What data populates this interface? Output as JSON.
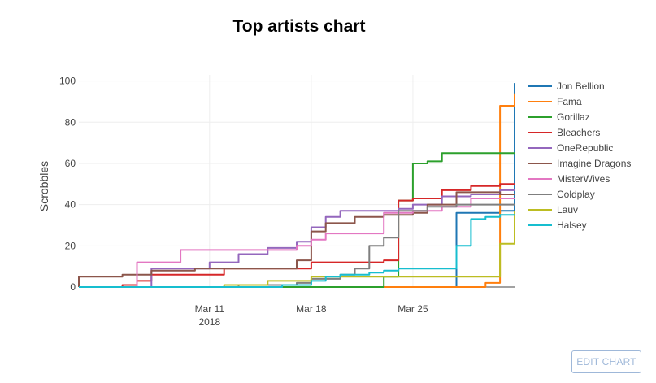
{
  "edit_button_label": "EDIT CHART",
  "chart_data": {
    "type": "line",
    "title": "Top artists chart",
    "xlabel": "",
    "ylabel": "Scrobbles",
    "x_type": "date",
    "xlim": [
      "2018-03-02",
      "2018-04-01"
    ],
    "ylim": [
      0,
      103
    ],
    "yticks": [
      0,
      20,
      40,
      60,
      80,
      100
    ],
    "xticks": [
      {
        "date": "2018-03-11",
        "label": "Mar 11",
        "sublabel": "2018"
      },
      {
        "date": "2018-03-18",
        "label": "Mar 18",
        "sublabel": ""
      },
      {
        "date": "2018-03-25",
        "label": "Mar 25",
        "sublabel": ""
      }
    ],
    "grid": true,
    "legend_position": "right",
    "series": [
      {
        "name": "Jon Bellion",
        "color": "#1f77b4",
        "step": true,
        "points": [
          [
            "2018-03-02",
            0
          ],
          [
            "2018-03-26",
            0
          ],
          [
            "2018-03-28",
            1
          ],
          [
            "2018-03-28",
            36
          ],
          [
            "2018-03-31",
            37
          ],
          [
            "2018-04-01",
            57
          ],
          [
            "2018-04-01",
            87
          ],
          [
            "2018-04-01",
            99
          ],
          [
            "2018-04-01",
            99
          ]
        ]
      },
      {
        "name": "Fama",
        "color": "#ff7f0e",
        "step": true,
        "points": [
          [
            "2018-03-02",
            0
          ],
          [
            "2018-03-29",
            0
          ],
          [
            "2018-03-30",
            2
          ],
          [
            "2018-03-31",
            21
          ],
          [
            "2018-03-31",
            60
          ],
          [
            "2018-03-31",
            88
          ],
          [
            "2018-04-01",
            94
          ],
          [
            "2018-04-01",
            94
          ]
        ]
      },
      {
        "name": "Gorillaz",
        "color": "#2ca02c",
        "step": true,
        "points": [
          [
            "2018-03-02",
            0
          ],
          [
            "2018-03-18",
            0
          ],
          [
            "2018-03-23",
            1
          ],
          [
            "2018-03-23",
            5
          ],
          [
            "2018-03-24",
            5
          ],
          [
            "2018-03-24",
            20
          ],
          [
            "2018-03-24",
            42
          ],
          [
            "2018-03-25",
            60
          ],
          [
            "2018-03-26",
            61
          ],
          [
            "2018-03-27",
            65
          ],
          [
            "2018-04-01",
            65
          ]
        ]
      },
      {
        "name": "Bleachers",
        "color": "#d62728",
        "step": true,
        "points": [
          [
            "2018-03-02",
            0
          ],
          [
            "2018-03-05",
            1
          ],
          [
            "2018-03-06",
            3
          ],
          [
            "2018-03-07",
            6
          ],
          [
            "2018-03-11",
            6
          ],
          [
            "2018-03-12",
            9
          ],
          [
            "2018-03-16",
            9
          ],
          [
            "2018-03-18",
            12
          ],
          [
            "2018-03-23",
            13
          ],
          [
            "2018-03-24",
            25
          ],
          [
            "2018-03-24",
            42
          ],
          [
            "2018-03-25",
            43
          ],
          [
            "2018-03-27",
            47
          ],
          [
            "2018-03-29",
            49
          ],
          [
            "2018-03-31",
            50
          ],
          [
            "2018-04-01",
            50
          ]
        ]
      },
      {
        "name": "OneRepublic",
        "color": "#9467bd",
        "step": true,
        "points": [
          [
            "2018-03-02",
            0
          ],
          [
            "2018-03-07",
            0
          ],
          [
            "2018-03-07",
            9
          ],
          [
            "2018-03-10",
            9
          ],
          [
            "2018-03-11",
            12
          ],
          [
            "2018-03-13",
            16
          ],
          [
            "2018-03-15",
            19
          ],
          [
            "2018-03-17",
            19
          ],
          [
            "2018-03-17",
            22
          ],
          [
            "2018-03-18",
            29
          ],
          [
            "2018-03-19",
            34
          ],
          [
            "2018-03-20",
            37
          ],
          [
            "2018-03-23",
            37
          ],
          [
            "2018-03-24",
            38
          ],
          [
            "2018-03-25",
            40
          ],
          [
            "2018-03-27",
            44
          ],
          [
            "2018-03-29",
            45
          ],
          [
            "2018-03-31",
            47
          ],
          [
            "2018-04-01",
            47
          ]
        ]
      },
      {
        "name": "Imagine Dragons",
        "color": "#8c564b",
        "step": true,
        "points": [
          [
            "2018-03-02",
            0
          ],
          [
            "2018-03-02",
            5
          ],
          [
            "2018-03-04",
            5
          ],
          [
            "2018-03-05",
            6
          ],
          [
            "2018-03-07",
            8
          ],
          [
            "2018-03-08",
            8
          ],
          [
            "2018-03-10",
            9
          ],
          [
            "2018-03-17",
            9
          ],
          [
            "2018-03-17",
            13
          ],
          [
            "2018-03-18",
            20
          ],
          [
            "2018-03-18",
            27
          ],
          [
            "2018-03-19",
            31
          ],
          [
            "2018-03-21",
            34
          ],
          [
            "2018-03-23",
            35
          ],
          [
            "2018-03-24",
            35
          ],
          [
            "2018-03-25",
            36
          ],
          [
            "2018-03-26",
            40
          ],
          [
            "2018-03-28",
            46
          ],
          [
            "2018-03-30",
            46
          ],
          [
            "2018-03-31",
            45
          ],
          [
            "2018-04-01",
            45
          ]
        ]
      },
      {
        "name": "MisterWives",
        "color": "#e377c2",
        "step": true,
        "points": [
          [
            "2018-03-02",
            0
          ],
          [
            "2018-03-06",
            0
          ],
          [
            "2018-03-06",
            12
          ],
          [
            "2018-03-08",
            12
          ],
          [
            "2018-03-09",
            18
          ],
          [
            "2018-03-12",
            18
          ],
          [
            "2018-03-17",
            18
          ],
          [
            "2018-03-17",
            20
          ],
          [
            "2018-03-18",
            23
          ],
          [
            "2018-03-19",
            26
          ],
          [
            "2018-03-23",
            26
          ],
          [
            "2018-03-23",
            36
          ],
          [
            "2018-03-25",
            37
          ],
          [
            "2018-03-27",
            39
          ],
          [
            "2018-03-29",
            43
          ],
          [
            "2018-04-01",
            43
          ]
        ]
      },
      {
        "name": "Coldplay",
        "color": "#7f7f7f",
        "step": true,
        "points": [
          [
            "2018-03-02",
            0
          ],
          [
            "2018-03-06",
            0
          ],
          [
            "2018-03-13",
            1
          ],
          [
            "2018-03-17",
            2
          ],
          [
            "2018-03-18",
            2
          ],
          [
            "2018-03-18",
            4
          ],
          [
            "2018-03-20",
            6
          ],
          [
            "2018-03-21",
            9
          ],
          [
            "2018-03-22",
            10
          ],
          [
            "2018-03-22",
            14
          ],
          [
            "2018-03-22",
            20
          ],
          [
            "2018-03-23",
            24
          ],
          [
            "2018-03-24",
            33
          ],
          [
            "2018-03-24",
            37
          ],
          [
            "2018-03-26",
            39
          ],
          [
            "2018-03-28",
            40
          ],
          [
            "2018-04-01",
            40
          ]
        ]
      },
      {
        "name": "Lauv",
        "color": "#bcbd22",
        "step": true,
        "points": [
          [
            "2018-03-02",
            0
          ],
          [
            "2018-03-12",
            0
          ],
          [
            "2018-03-12",
            1
          ],
          [
            "2018-03-15",
            1
          ],
          [
            "2018-03-15",
            3
          ],
          [
            "2018-03-18",
            3
          ],
          [
            "2018-03-18",
            5
          ],
          [
            "2018-03-23",
            5
          ],
          [
            "2018-03-23",
            5
          ],
          [
            "2018-03-30",
            5
          ],
          [
            "2018-03-31",
            9
          ],
          [
            "2018-03-31",
            21
          ],
          [
            "2018-04-01",
            31
          ],
          [
            "2018-04-01",
            36
          ],
          [
            "2018-04-01",
            37
          ]
        ]
      },
      {
        "name": "Halsey",
        "color": "#17becf",
        "step": true,
        "points": [
          [
            "2018-03-02",
            0
          ],
          [
            "2018-03-16",
            0
          ],
          [
            "2018-03-16",
            1
          ],
          [
            "2018-03-18",
            1
          ],
          [
            "2018-03-18",
            3
          ],
          [
            "2018-03-19",
            5
          ],
          [
            "2018-03-20",
            6
          ],
          [
            "2018-03-22",
            7
          ],
          [
            "2018-03-23",
            8
          ],
          [
            "2018-03-24",
            9
          ],
          [
            "2018-03-27",
            9
          ],
          [
            "2018-03-28",
            12
          ],
          [
            "2018-03-28",
            20
          ],
          [
            "2018-03-29",
            33
          ],
          [
            "2018-03-30",
            34
          ],
          [
            "2018-03-31",
            35
          ],
          [
            "2018-04-01",
            35
          ]
        ]
      }
    ]
  }
}
